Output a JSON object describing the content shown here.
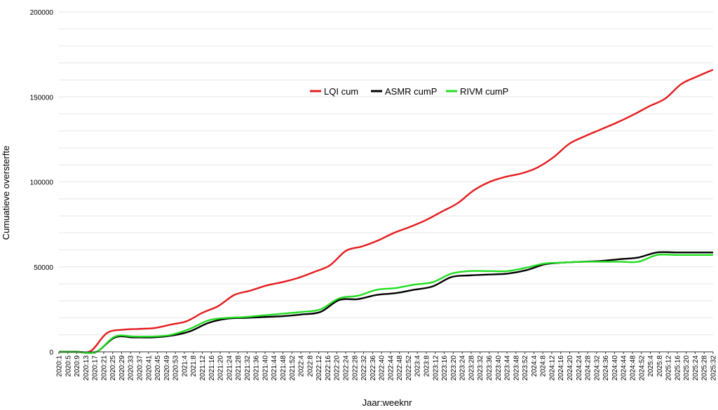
{
  "chart_data": {
    "type": "line",
    "xlabel": "Jaar:weeknr",
    "ylabel": "Cumuatieve oversterfte",
    "ylim": [
      0,
      200000
    ],
    "yticks": [
      0,
      50000,
      100000,
      150000,
      200000
    ],
    "grid": true,
    "legend": "top-center",
    "x_tick_labels": [
      "2020:1",
      "2020:5",
      "2020:9",
      "2020:13",
      "2020:17",
      "2020:21",
      "2020:25",
      "2020:29",
      "2020:33",
      "2020:37",
      "2020:41",
      "2020:45",
      "2020:49",
      "2020:53",
      "2021:4",
      "2021:8",
      "2021:12",
      "2021:16",
      "2021:20",
      "2021:24",
      "2021:28",
      "2021:32",
      "2021:36",
      "2021:40",
      "2021:44",
      "2021:48",
      "2021:52",
      "2022:4",
      "2022:8",
      "2022:12",
      "2022:16",
      "2022:20",
      "2022:24",
      "2022:28",
      "2022:32",
      "2022:36",
      "2022:40",
      "2022:44",
      "2022:48",
      "2022:52",
      "2023:4",
      "2023:8",
      "2023:12",
      "2023:16",
      "2023:20",
      "2023:24",
      "2023:28",
      "2023:32",
      "2023:36",
      "2023:40",
      "2023:44",
      "2023:48",
      "2023:52",
      "2024:4",
      "2024:8",
      "2024:12",
      "2024:16",
      "2024:20",
      "2024:24",
      "2024:28",
      "2024:32",
      "2024:36",
      "2024:40",
      "2024:44",
      "2024:48",
      "2024:52",
      "2025:4",
      "2025:8",
      "2025:12",
      "2025:16",
      "2025:20",
      "2025:24",
      "2025:28",
      "2025:32"
    ],
    "series": [
      {
        "name": "LQI cum",
        "color": "#e41a1c",
        "values": [
          0,
          0,
          500,
          11000,
          13000,
          13500,
          14000,
          16000,
          18000,
          23000,
          27000,
          33500,
          36000,
          39000,
          41000,
          43500,
          47000,
          51000,
          59500,
          62000,
          65500,
          70000,
          73500,
          77500,
          82500,
          87500,
          95000,
          100000,
          103000,
          105000,
          108500,
          114500,
          122500,
          127000,
          131000,
          135000,
          139500,
          144500,
          149000,
          157500,
          162000,
          166000
        ]
      },
      {
        "name": "ASMR cumP",
        "color": "#000000",
        "values": [
          0,
          0,
          0,
          8500,
          8500,
          8500,
          9500,
          12000,
          17000,
          19500,
          20000,
          20500,
          21000,
          22000,
          23500,
          30500,
          31000,
          33500,
          34500,
          36500,
          38500,
          44000,
          45000,
          45500,
          46000,
          48000,
          51500,
          52500,
          53000,
          53500,
          54500,
          55500,
          58500,
          58500,
          58500,
          58500
        ]
      },
      {
        "name": "RIVM cumP",
        "color": "#22dd22",
        "values": [
          0,
          0,
          0,
          9000,
          9000,
          9000,
          10000,
          13500,
          18500,
          20000,
          20500,
          21500,
          22500,
          23500,
          25000,
          31500,
          33000,
          36500,
          37500,
          39500,
          41000,
          46000,
          47500,
          47500,
          47500,
          49500,
          52000,
          52500,
          53000,
          53000,
          53000,
          53000,
          57000,
          57000,
          57000,
          57000
        ]
      }
    ]
  }
}
